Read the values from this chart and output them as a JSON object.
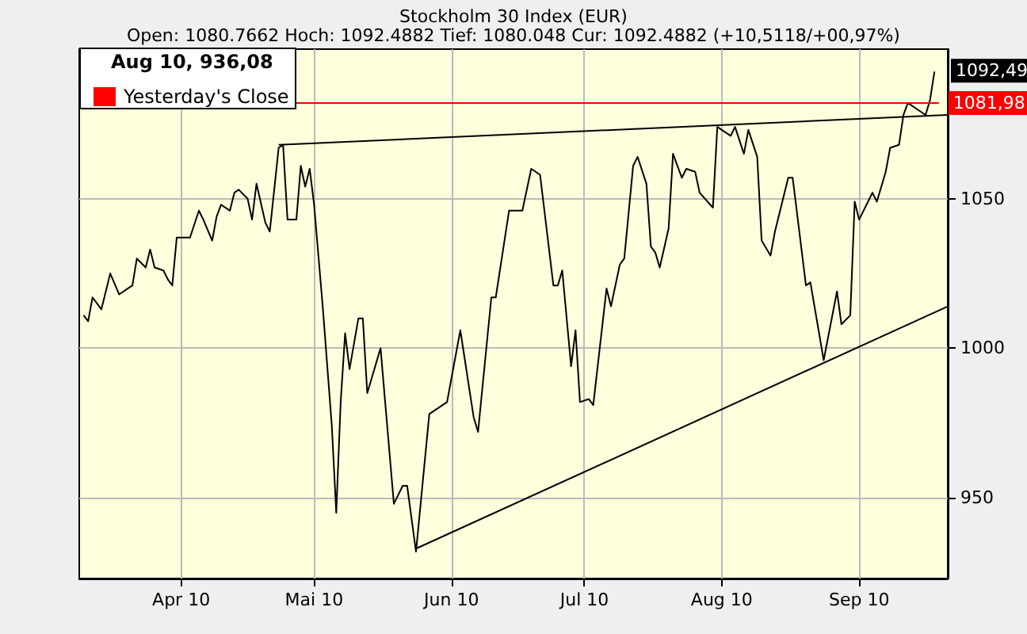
{
  "chart_data": {
    "type": "line",
    "title": "Stockholm 30 Index (EUR)",
    "subtitle": "Open: 1080.7662 Hoch: 1092.4882 Tief: 1080.048 Cur: 1092.4882 (+10,5118/+00,97%)",
    "annotations": [
      "Aug 10, 936,08",
      {
        "text": "1092,49",
        "x": "2010-09-18",
        "y": 1092.49
      }
    ],
    "xlim": [
      "2010-03-09",
      "2010-09-21"
    ],
    "xticks": [
      {
        "value": "2010-04-01",
        "label": "Apr 10"
      },
      {
        "value": "2010-05-01",
        "label": "Mai 10"
      },
      {
        "value": "2010-06-01",
        "label": "Jun 10"
      },
      {
        "value": "2010-07-01",
        "label": "Jul 10"
      },
      {
        "value": "2010-08-01",
        "label": "Aug 10"
      },
      {
        "value": "2010-09-01",
        "label": "Sep 10"
      }
    ],
    "ylim": [
      923,
      1100
    ],
    "yticks": [
      950,
      1000,
      1050
    ],
    "grid": true,
    "legend": "top left",
    "marker": "none",
    "series": [
      {
        "color": "#000000",
        "x": [
          "2010-03-10",
          "2010-03-11",
          "2010-03-12",
          "2010-03-14",
          "2010-03-16",
          "2010-03-18",
          "2010-03-21",
          "2010-03-22",
          "2010-03-24",
          "2010-03-25",
          "2010-03-26",
          "2010-03-28",
          "2010-03-29",
          "2010-03-30",
          "2010-03-31",
          "2010-04-03",
          "2010-04-05",
          "2010-04-06",
          "2010-04-08",
          "2010-04-09",
          "2010-04-10",
          "2010-04-12",
          "2010-04-13",
          "2010-04-14",
          "2010-04-16",
          "2010-04-17",
          "2010-04-18",
          "2010-04-20",
          "2010-04-21",
          "2010-04-23",
          "2010-04-24",
          "2010-04-25",
          "2010-04-27",
          "2010-04-28",
          "2010-04-29",
          "2010-04-30",
          "2010-05-01",
          "2010-05-03",
          "2010-05-05",
          "2010-05-06",
          "2010-05-07",
          "2010-05-08",
          "2010-05-09",
          "2010-05-11",
          "2010-05-12",
          "2010-05-13",
          "2010-05-16",
          "2010-05-19",
          "2010-05-21",
          "2010-05-22",
          "2010-05-24",
          "2010-05-27",
          "2010-05-31",
          "2010-06-03",
          "2010-06-06",
          "2010-06-07",
          "2010-06-10",
          "2010-06-11",
          "2010-06-14",
          "2010-06-17",
          "2010-06-19",
          "2010-06-21",
          "2010-06-24",
          "2010-06-25",
          "2010-06-26",
          "2010-06-28",
          "2010-06-29",
          "2010-06-30",
          "2010-07-02",
          "2010-07-03",
          "2010-07-06",
          "2010-07-07",
          "2010-07-09",
          "2010-07-10",
          "2010-07-12",
          "2010-07-13",
          "2010-07-15",
          "2010-07-16",
          "2010-07-17",
          "2010-07-18",
          "2010-07-20",
          "2010-07-21",
          "2010-07-23",
          "2010-07-24",
          "2010-07-26",
          "2010-07-27",
          "2010-07-30",
          "2010-07-31",
          "2010-08-03",
          "2010-08-04",
          "2010-08-06",
          "2010-08-07",
          "2010-08-09",
          "2010-08-10",
          "2010-08-12",
          "2010-08-13",
          "2010-08-16",
          "2010-08-17",
          "2010-08-20",
          "2010-08-21",
          "2010-08-24",
          "2010-08-27",
          "2010-08-28",
          "2010-08-30",
          "2010-08-31",
          "2010-09-01",
          "2010-09-04",
          "2010-09-05",
          "2010-09-07",
          "2010-09-08",
          "2010-09-10",
          "2010-09-11",
          "2010-09-12",
          "2010-09-14",
          "2010-09-16",
          "2010-09-17",
          "2010-09-18"
        ],
        "values": [
          1011,
          1009,
          1017,
          1013,
          1025,
          1018,
          1021,
          1030,
          1027,
          1033,
          1027,
          1026,
          1023,
          1021,
          1037,
          1037,
          1046,
          1043,
          1036,
          1044,
          1048,
          1046,
          1052,
          1053,
          1050,
          1043,
          1055,
          1042,
          1039,
          1067,
          1068,
          1043,
          1043,
          1061,
          1054,
          1060,
          1048,
          1013,
          974,
          945,
          982,
          1005,
          993,
          1010,
          1010,
          985,
          1000,
          948,
          954,
          954,
          932,
          978,
          982,
          1006,
          977,
          972,
          1017,
          1017,
          1046,
          1046,
          1060,
          1058,
          1021,
          1021,
          1026,
          994,
          1006,
          982,
          983,
          981,
          1020,
          1014,
          1028,
          1030,
          1061,
          1064,
          1055,
          1034,
          1032,
          1027,
          1040,
          1065,
          1057,
          1060,
          1059,
          1052,
          1047,
          1074,
          1071,
          1074,
          1065,
          1073,
          1064,
          1036,
          1031,
          1039,
          1057,
          1057,
          1021,
          1022,
          996,
          1019,
          1008,
          1011,
          1049,
          1043,
          1052,
          1049,
          1059,
          1067,
          1068,
          1078,
          1082,
          1080,
          1078,
          1083,
          1092.49
        ]
      },
      {
        "name": "Yesterday's Close",
        "color": "#ff0000",
        "x": [
          "2010-04-27",
          "2010-09-19"
        ],
        "values": [
          1081.98,
          1081.98
        ],
        "value_labels": [
          null,
          "1081,98"
        ]
      },
      {
        "color": "#000000",
        "x": [
          "2010-04-23",
          "2010-09-21"
        ],
        "values": [
          1068,
          1078
        ]
      },
      {
        "color": "#000000",
        "x": [
          "2010-05-24",
          "2010-09-21"
        ],
        "values": [
          933,
          1014
        ]
      }
    ]
  }
}
